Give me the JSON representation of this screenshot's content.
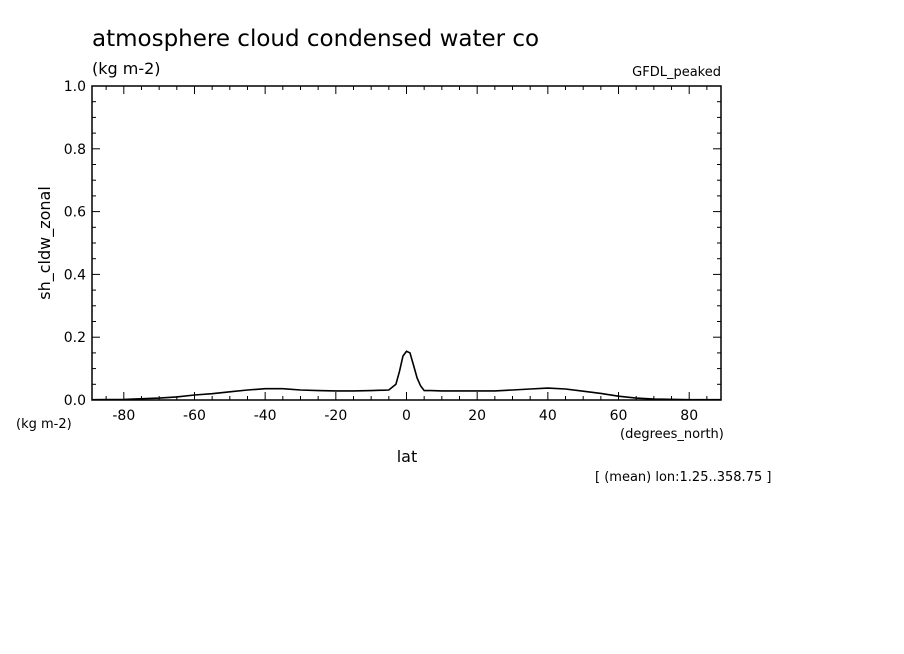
{
  "chart_data": {
    "type": "line",
    "title": "atmosphere cloud condensed water co",
    "title_units": "(kg m-2)",
    "model_label": "GFDL_peaked",
    "xlabel": "lat",
    "xunits": "(degrees_north)",
    "ylabel": "sh_cldw_zonal",
    "yunits": "(kg m-2)",
    "footnote": "[ (mean) lon:1.25..358.75 ]",
    "xlim": [
      -89,
      89
    ],
    "ylim": [
      0,
      1.0
    ],
    "xticks": [
      -80,
      -60,
      -40,
      -20,
      0,
      20,
      40,
      60,
      80
    ],
    "xtick_labels": [
      "-80",
      "-60",
      "-40",
      "-20",
      "0",
      "20",
      "40",
      "60",
      "80"
    ],
    "yticks": [
      0.0,
      0.2,
      0.4,
      0.6,
      0.8,
      1.0
    ],
    "ytick_labels": [
      "0.0",
      "0.2",
      "0.4",
      "0.6",
      "0.8",
      "1.0"
    ],
    "grid": false,
    "series": [
      {
        "x": [
          -89,
          -80,
          -70,
          -65,
          -60,
          -55,
          -50,
          -45,
          -40,
          -35,
          -30,
          -25,
          -20,
          -15,
          -10,
          -5,
          -3,
          -2,
          -1,
          0,
          1,
          2,
          3,
          4,
          5,
          7,
          10,
          15,
          20,
          25,
          30,
          35,
          40,
          45,
          50,
          55,
          60,
          65,
          70,
          80,
          89
        ],
        "y": [
          0.001,
          0.002,
          0.006,
          0.01,
          0.016,
          0.02,
          0.026,
          0.032,
          0.036,
          0.036,
          0.032,
          0.03,
          0.029,
          0.029,
          0.03,
          0.032,
          0.05,
          0.09,
          0.14,
          0.155,
          0.15,
          0.11,
          0.07,
          0.045,
          0.03,
          0.03,
          0.029,
          0.029,
          0.029,
          0.029,
          0.032,
          0.035,
          0.038,
          0.035,
          0.028,
          0.021,
          0.012,
          0.006,
          0.003,
          0.001,
          0.001
        ]
      }
    ]
  }
}
